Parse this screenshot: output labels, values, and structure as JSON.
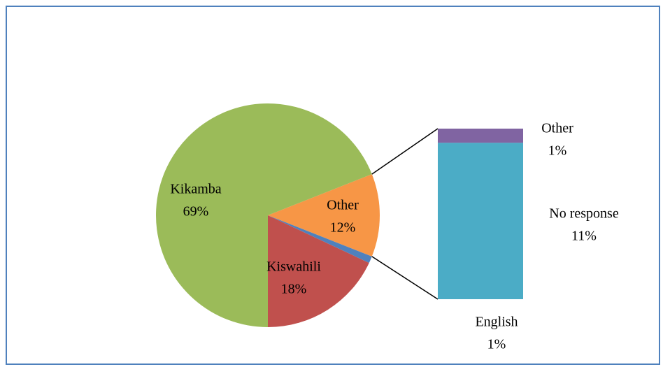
{
  "chart_data": {
    "type": "pie",
    "categories": [
      "Other",
      "English",
      "Kiswahili",
      "Kikamba"
    ],
    "values": [
      12,
      1,
      18,
      69
    ],
    "value_labels": [
      "12%",
      "1%",
      "18%",
      "69%"
    ],
    "colors": [
      "#f79646",
      "#4f81bd",
      "#c0504d",
      "#9bbb59"
    ],
    "bar": {
      "categories": [
        "Other",
        "No response"
      ],
      "values": [
        1,
        11
      ],
      "value_labels": [
        "1%",
        "11%"
      ],
      "colors": [
        "#8064a2",
        "#4bacc6"
      ]
    }
  }
}
